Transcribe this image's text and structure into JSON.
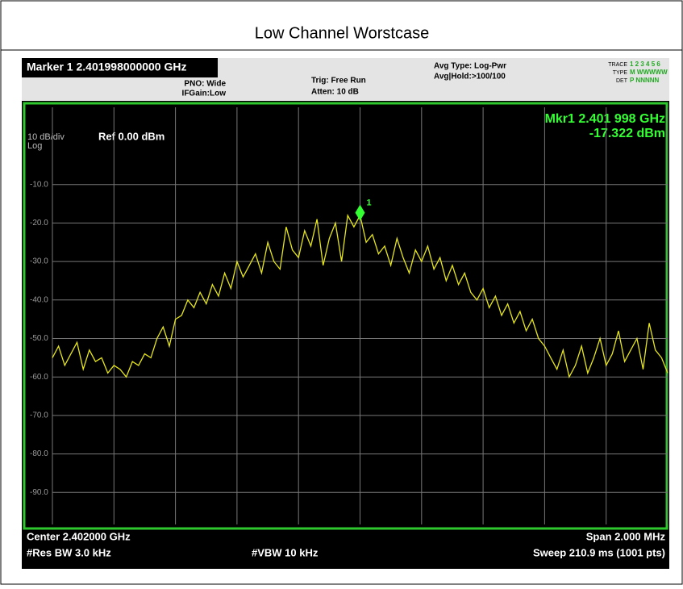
{
  "title": "Low Channel Worstcase",
  "header": {
    "marker": "Marker 1 2.401998000000 GHz",
    "pno": "PNO: Wide",
    "ifgain": "IFGain:Low",
    "trig": "Trig: Free Run",
    "atten": "Atten: 10 dB",
    "avg_type": "Avg Type: Log-Pwr",
    "avg_hold": "Avg|Hold:>100/100",
    "trace_label": "TRACE",
    "trace_nums": "1 2 3 4 5 6",
    "type_label": "TYPE",
    "type_vals": "M WWWWW",
    "det_label": "DET",
    "det_vals": "P NNNNN"
  },
  "chart_data": {
    "type": "line",
    "marker_readout": "Mkr1 2.401 998 GHz",
    "marker_level": "-17.322 dBm",
    "scale": "10 dB/div",
    "ref": "Ref 0.00 dBm",
    "scale_type": "Log",
    "center": "Center 2.402000 GHz",
    "span": "Span 2.000 MHz",
    "rbw": "#Res BW 3.0 kHz",
    "vbw": "#VBW 10 kHz",
    "sweep": "Sweep  210.9 ms (1001 pts)",
    "marker": {
      "label": "1",
      "value": -17.322
    },
    "color": "#e6e61a",
    "ylim": [
      -100,
      0
    ],
    "yticks": [
      {
        "value": -10,
        "label": "-10.0"
      },
      {
        "value": -20,
        "label": "-20.0"
      },
      {
        "value": -30,
        "label": "-30.0"
      },
      {
        "value": -40,
        "label": "-40.0"
      },
      {
        "value": -50,
        "label": "-50.0"
      },
      {
        "value": -60,
        "label": "-60.0"
      },
      {
        "value": -70,
        "label": "-70.0"
      },
      {
        "value": -80,
        "label": "-80.0"
      },
      {
        "value": -90,
        "label": "-90.0"
      }
    ],
    "grid": true,
    "values": [
      -55,
      -52,
      -57,
      -54,
      -51,
      -58,
      -53,
      -56,
      -55,
      -59,
      -57,
      -58,
      -60,
      -56,
      -57,
      -54,
      -55,
      -50,
      -47,
      -52,
      -45,
      -44,
      -40,
      -42,
      -38,
      -41,
      -36,
      -39,
      -33,
      -37,
      -30,
      -34,
      -31,
      -28,
      -33,
      -25,
      -30,
      -32,
      -21,
      -27,
      -29,
      -22,
      -26,
      -19,
      -31,
      -24,
      -20,
      -30,
      -18,
      -21,
      -18,
      -25,
      -23,
      -28,
      -26,
      -31,
      -24,
      -29,
      -33,
      -27,
      -30,
      -26,
      -32,
      -29,
      -35,
      -31,
      -36,
      -33,
      -38,
      -40,
      -37,
      -42,
      -39,
      -44,
      -41,
      -46,
      -43,
      -48,
      -45,
      -50,
      -52,
      -55,
      -58,
      -53,
      -60,
      -57,
      -52,
      -59,
      -55,
      -50,
      -57,
      -54,
      -48,
      -56,
      -53,
      -50,
      -58,
      -46,
      -53,
      -55,
      -59
    ]
  }
}
